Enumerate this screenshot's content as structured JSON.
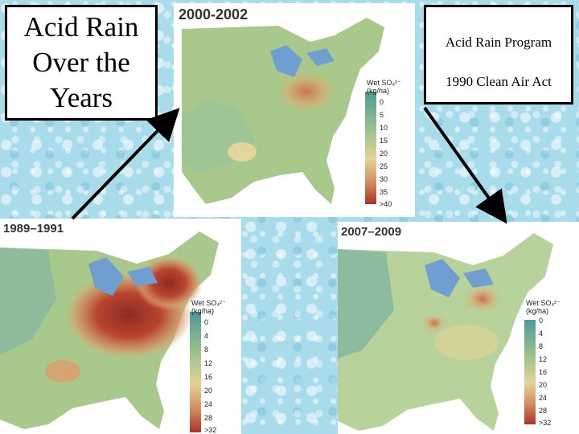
{
  "title": {
    "line1": "Acid Rain",
    "line2": "Over the",
    "line3": "Years"
  },
  "info": {
    "line1": "Acid Rain Program",
    "line2": "1990 Clean Air Act"
  },
  "maps": {
    "top": {
      "period": "2000-2002",
      "legend_title_line1": "Wet SO₄²⁻",
      "legend_title_line2": "(kg/ha)",
      "ticks": [
        "0",
        "5",
        "10",
        "15",
        "20",
        "25",
        "30",
        "35",
        ">40"
      ]
    },
    "left": {
      "period": "1989–1991",
      "legend_title_line1": "Wet SO₄²⁻",
      "legend_title_line2": "(kg/ha)",
      "ticks": [
        "0",
        "4",
        "8",
        "12",
        "16",
        "20",
        "24",
        "28",
        ">32"
      ]
    },
    "right": {
      "period": "2007–2009",
      "legend_title_line1": "Wet SO₄²⁻",
      "legend_title_line2": "(kg/ha)",
      "ticks": [
        "0",
        "4",
        "8",
        "12",
        "16",
        "20",
        "24",
        "28",
        ">32"
      ]
    }
  },
  "colors": {
    "low": "#4f9a95",
    "mid": "#a9c98c",
    "high": "#e2b77a",
    "very_high": "#a8322c",
    "water": "#6f9fd0"
  }
}
